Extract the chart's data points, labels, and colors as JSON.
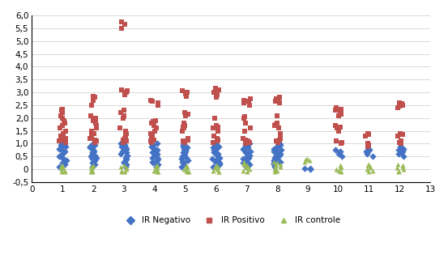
{
  "negativo": {
    "1": [
      0.1,
      0.2,
      0.25,
      0.3,
      0.35,
      0.4,
      0.45,
      0.5,
      0.55,
      0.6,
      0.65,
      0.7,
      0.75,
      0.8,
      0.85,
      0.9,
      0.95,
      1.0
    ],
    "2": [
      0.1,
      0.2,
      0.25,
      0.3,
      0.35,
      0.4,
      0.45,
      0.5,
      0.55,
      0.6,
      0.65,
      0.7,
      0.75,
      0.8,
      0.85,
      0.9,
      0.95,
      1.0
    ],
    "3": [
      0.1,
      0.2,
      0.25,
      0.3,
      0.35,
      0.4,
      0.45,
      0.5,
      0.55,
      0.6,
      0.65,
      0.7,
      0.75,
      0.8,
      0.85,
      0.9,
      0.95,
      1.0
    ],
    "4": [
      0.1,
      0.2,
      0.25,
      0.3,
      0.35,
      0.4,
      0.45,
      0.5,
      0.55,
      0.6,
      0.65,
      0.7,
      0.75,
      0.8,
      0.85,
      0.9,
      0.95,
      1.0
    ],
    "5": [
      0.1,
      0.2,
      0.25,
      0.3,
      0.35,
      0.4,
      0.45,
      0.5,
      0.55,
      0.6,
      0.65,
      0.7,
      0.75,
      0.8,
      0.85,
      0.9,
      0.95,
      1.0
    ],
    "6": [
      0.1,
      0.2,
      0.25,
      0.3,
      0.35,
      0.4,
      0.45,
      0.5,
      0.55,
      0.6,
      0.65,
      0.7,
      0.75,
      0.8,
      0.85,
      0.9,
      0.95,
      1.0
    ],
    "7": [
      0.1,
      0.2,
      0.25,
      0.3,
      0.35,
      0.4,
      0.45,
      0.5,
      0.55,
      0.6,
      0.65,
      0.7,
      0.75,
      0.8,
      0.85,
      0.9,
      0.95,
      1.0
    ],
    "8": [
      0.1,
      0.2,
      0.25,
      0.3,
      0.35,
      0.4,
      0.45,
      0.5,
      0.55,
      0.6,
      0.65,
      0.7,
      0.75,
      0.8,
      0.85,
      0.9,
      0.95,
      1.0
    ],
    "9": [
      0.0,
      0.02,
      0.04
    ],
    "10": [
      0.5,
      0.6,
      0.65,
      0.7,
      0.75
    ],
    "11": [
      0.5,
      0.6,
      0.65,
      0.7,
      0.75,
      0.8
    ],
    "12": [
      0.5,
      0.6,
      0.65,
      0.7,
      0.75,
      0.8,
      0.85,
      0.9
    ]
  },
  "positivo": {
    "1": [
      1.05,
      1.1,
      1.15,
      1.2,
      1.3,
      1.4,
      1.5,
      1.6,
      1.7,
      1.8,
      1.9,
      2.0,
      2.1,
      2.2,
      2.3,
      2.35
    ],
    "2": [
      1.05,
      1.1,
      1.15,
      1.2,
      1.3,
      1.4,
      1.5,
      1.6,
      1.7,
      1.8,
      1.9,
      2.0,
      2.1,
      2.5,
      2.7,
      2.8,
      2.85
    ],
    "3": [
      1.05,
      1.1,
      1.15,
      1.2,
      1.3,
      1.4,
      1.5,
      1.6,
      2.0,
      2.1,
      2.2,
      2.3,
      2.9,
      3.0,
      3.05,
      3.1,
      5.5,
      5.65,
      5.75
    ],
    "4": [
      1.05,
      1.1,
      1.15,
      1.2,
      1.3,
      1.4,
      1.5,
      1.6,
      1.7,
      1.8,
      1.85,
      1.9,
      2.5,
      2.6,
      2.65,
      2.7
    ],
    "5": [
      1.05,
      1.1,
      1.15,
      1.2,
      1.5,
      1.6,
      1.65,
      1.7,
      1.8,
      2.1,
      2.15,
      2.2,
      2.85,
      2.95,
      3.0,
      3.05
    ],
    "6": [
      1.05,
      1.1,
      1.15,
      1.2,
      1.3,
      1.5,
      1.6,
      1.65,
      1.7,
      2.0,
      2.8,
      2.9,
      3.0,
      3.1,
      3.15
    ],
    "7": [
      1.0,
      1.05,
      1.1,
      1.15,
      1.2,
      1.5,
      1.6,
      1.8,
      2.0,
      2.05,
      2.5,
      2.6,
      2.65,
      2.7,
      2.75
    ],
    "8": [
      1.05,
      1.1,
      1.15,
      1.2,
      1.4,
      1.6,
      1.7,
      1.75,
      1.8,
      2.1,
      2.6,
      2.65,
      2.7,
      2.75,
      2.8
    ],
    "9": [],
    "10": [
      1.0,
      1.05,
      1.1,
      1.5,
      1.6,
      1.65,
      1.7,
      2.1,
      2.15,
      2.2,
      2.3,
      2.35,
      2.4
    ],
    "11": [
      0.9,
      0.95,
      1.0,
      1.3,
      1.35,
      1.4
    ],
    "12": [
      1.0,
      1.05,
      1.1,
      1.3,
      1.35,
      1.4,
      2.4,
      2.45,
      2.5,
      2.55,
      2.6
    ]
  },
  "controle": {
    "1": [
      -0.1,
      -0.08,
      -0.05,
      0.0,
      0.05,
      0.1,
      0.15
    ],
    "2": [
      -0.1,
      -0.08,
      -0.05,
      0.0,
      0.05,
      0.1,
      0.15
    ],
    "3": [
      -0.1,
      -0.08,
      -0.05,
      0.0,
      0.05,
      0.1,
      0.15
    ],
    "4": [
      -0.1,
      -0.08,
      -0.05,
      0.0,
      0.05,
      0.1,
      0.15
    ],
    "5": [
      -0.1,
      -0.08,
      -0.05,
      0.0,
      0.05,
      0.1,
      0.15
    ],
    "6": [
      -0.1,
      -0.08,
      -0.05,
      0.0,
      0.05,
      0.1,
      0.15
    ],
    "7": [
      -0.1,
      -0.05,
      0.0,
      0.05,
      0.1,
      0.15,
      0.2,
      0.25,
      0.3
    ],
    "8": [
      -0.1,
      -0.05,
      0.0,
      0.05,
      0.1,
      0.15,
      0.2,
      0.25,
      0.3
    ],
    "9": [
      0.3,
      0.35,
      0.38,
      0.4
    ],
    "10": [
      -0.1,
      -0.05,
      0.0,
      0.05,
      0.1,
      0.15
    ],
    "11": [
      -0.1,
      -0.05,
      0.0,
      0.05,
      0.1,
      0.15,
      0.2
    ],
    "12": [
      -0.1,
      -0.05,
      0.0,
      0.05,
      0.1,
      0.15,
      0.2
    ]
  },
  "neg_color": "#4472C4",
  "pos_color": "#C0504D",
  "ctrl_color": "#9BBB59",
  "bg_color": "#FFFFFF",
  "grid_color": "#D9D9D9",
  "xlim": [
    0,
    13
  ],
  "ylim": [
    -0.5,
    6.0
  ],
  "yticks": [
    -0.5,
    0.0,
    0.5,
    1.0,
    1.5,
    2.0,
    2.5,
    3.0,
    3.5,
    4.0,
    4.5,
    5.0,
    5.5,
    6.0
  ],
  "ytick_labels": [
    "-0,5",
    "0",
    "0,5",
    "1,0",
    "1,5",
    "2,0",
    "2,5",
    "3,0",
    "3,5",
    "4,0",
    "4,5",
    "5,0",
    "5,5",
    "6,0"
  ],
  "xticks": [
    0,
    1,
    2,
    3,
    4,
    5,
    6,
    7,
    8,
    9,
    10,
    11,
    12,
    13
  ],
  "legend_neg": "IR Negativo",
  "legend_pos": "IR Positivo",
  "legend_ctrl": "IR controle",
  "scatter_size": 18,
  "jitter": 0.12
}
